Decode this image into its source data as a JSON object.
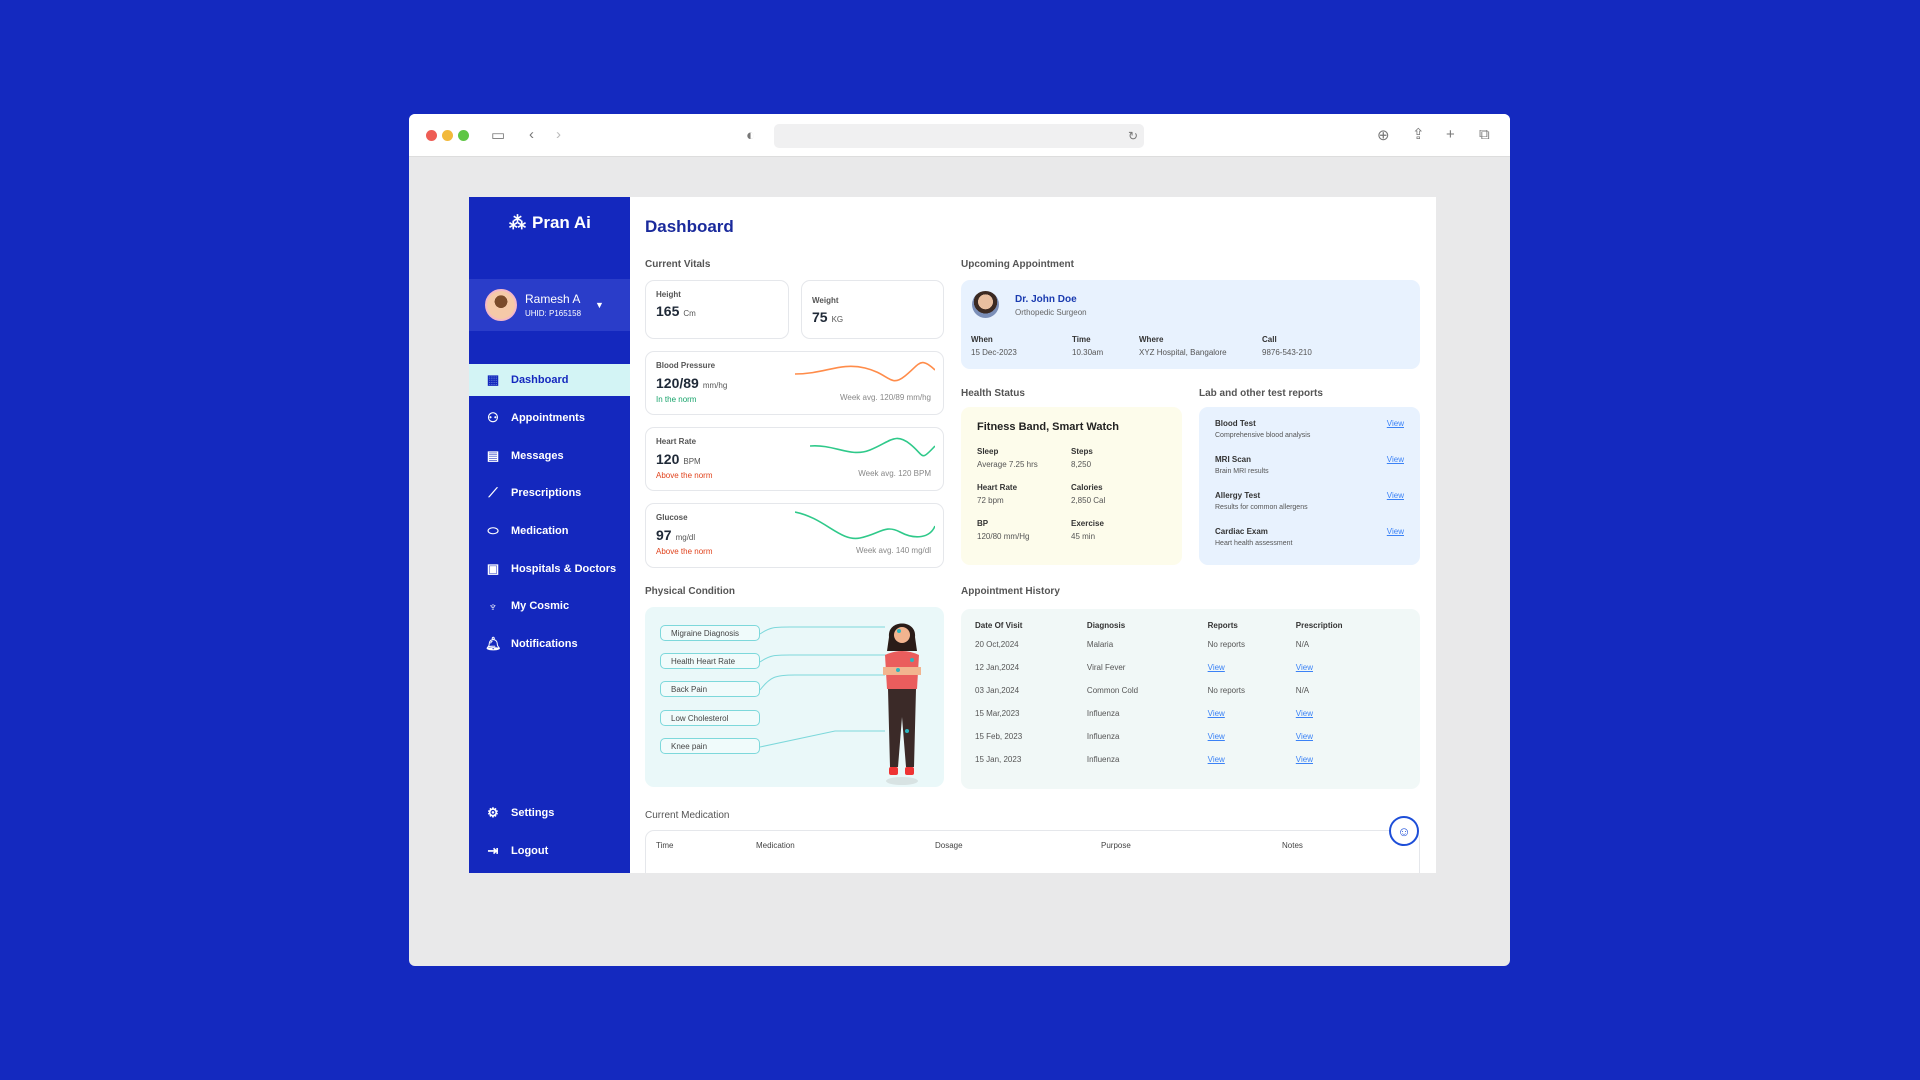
{
  "browser": {
    "icons": [
      "sidebar-icon",
      "back-icon",
      "forward-icon",
      "shield-icon",
      "reload-icon",
      "download-icon",
      "share-icon",
      "new-tab-icon",
      "tabs-icon"
    ]
  },
  "colors": {
    "background": "#1429bf",
    "sidebar": "#1428be",
    "active_nav": "#d3f4f5",
    "accent": "#1a2a9c",
    "ok": "#16a36a",
    "bad": "#e0421c",
    "link": "#3b82f6"
  },
  "sidebar": {
    "logo": "Pran Ai",
    "user": {
      "name": "Ramesh A",
      "uhid": "UHID: P165158"
    },
    "items": [
      {
        "label": "Dashboard",
        "icon": "dashboard-icon",
        "active": true
      },
      {
        "label": "Appointments",
        "icon": "users-icon"
      },
      {
        "label": "Messages",
        "icon": "message-icon"
      },
      {
        "label": "Prescriptions",
        "icon": "chart-line-icon"
      },
      {
        "label": "Medication",
        "icon": "pill-icon"
      },
      {
        "label": "Hospitals & Doctors",
        "icon": "hospital-icon"
      },
      {
        "label": "My Cosmic",
        "icon": "cosmic-icon"
      },
      {
        "label": "Notifications",
        "icon": "bell-icon"
      }
    ],
    "bottom": [
      {
        "label": "Settings",
        "icon": "gear-icon"
      },
      {
        "label": "Logout",
        "icon": "logout-icon"
      }
    ]
  },
  "main": {
    "title": "Dashboard",
    "vitals": {
      "title": "Current Vitals",
      "height": {
        "label": "Height",
        "value": "165",
        "unit": "Cm"
      },
      "weight": {
        "label": "Weight",
        "value": "75",
        "unit": "KG"
      },
      "bp": {
        "label": "Blood Pressure",
        "value": "120/89",
        "unit": "mm/hg",
        "status": "In the norm",
        "avg": "Week avg. 120/89 mm/hg"
      },
      "hr": {
        "label": "Heart Rate",
        "value": "120",
        "unit": "BPM",
        "status": "Above the norm",
        "avg": "Week avg. 120 BPM"
      },
      "glucose": {
        "label": "Glucose",
        "value": "97",
        "unit": "mg/dl",
        "status": "Above the norm",
        "avg": "Week avg. 140 mg/dl"
      }
    },
    "appointment": {
      "title": "Upcoming Appointment",
      "doctor": "Dr. John Doe",
      "specialty": "Orthopedic Surgeon",
      "fields": [
        {
          "k": "When",
          "v": "15 Dec-2023"
        },
        {
          "k": "Time",
          "v": "10.30am"
        },
        {
          "k": "Where",
          "v": "XYZ Hospital, Bangalore"
        },
        {
          "k": "Call",
          "v": "9876-543-210"
        }
      ]
    },
    "health": {
      "title": "Health Status",
      "device": "Fitness Band, Smart Watch",
      "stats": [
        {
          "k": "Sleep",
          "v": "Average 7.25 hrs"
        },
        {
          "k": "Steps",
          "v": "8,250"
        },
        {
          "k": "Heart Rate",
          "v": "72 bpm"
        },
        {
          "k": "Calories",
          "v": "2,850 Cal"
        },
        {
          "k": "BP",
          "v": "120/80 mm/Hg"
        },
        {
          "k": "Exercise",
          "v": "45 min"
        }
      ]
    },
    "labs": {
      "title": "Lab and other test reports",
      "view": "View",
      "items": [
        {
          "name": "Blood Test",
          "desc": "Comprehensive blood analysis"
        },
        {
          "name": "MRI Scan",
          "desc": "Brain MRI results"
        },
        {
          "name": "Allergy Test",
          "desc": "Results for common allergens"
        },
        {
          "name": "Cardiac Exam",
          "desc": "Heart health assessment"
        }
      ]
    },
    "physical": {
      "title": "Physical Condition",
      "items": [
        "Migraine Diagnosis",
        "Health Heart Rate",
        "Back Pain",
        "Low Cholesterol",
        "Knee pain"
      ]
    },
    "history": {
      "title": "Appointment History",
      "columns": [
        "Date Of Visit",
        "Diagnosis",
        "Reports",
        "Prescription"
      ],
      "rows": [
        [
          "20 Oct,2024",
          "Malaria",
          "No reports",
          "N/A"
        ],
        [
          "12 Jan,2024",
          "Viral Fever",
          "View",
          "View"
        ],
        [
          "03 Jan,2024",
          "Common Cold",
          "No reports",
          "N/A"
        ],
        [
          "15 Mar,2023",
          "Influenza",
          "View",
          "View"
        ],
        [
          "15 Feb, 2023",
          "Influenza",
          "View",
          "View"
        ],
        [
          "15 Jan, 2023",
          "Influenza",
          "View",
          "View"
        ]
      ]
    },
    "medication": {
      "title": "Current Medication",
      "columns": [
        "Time",
        "Medication",
        "Dosage",
        "Purpose",
        "Notes"
      ]
    }
  }
}
